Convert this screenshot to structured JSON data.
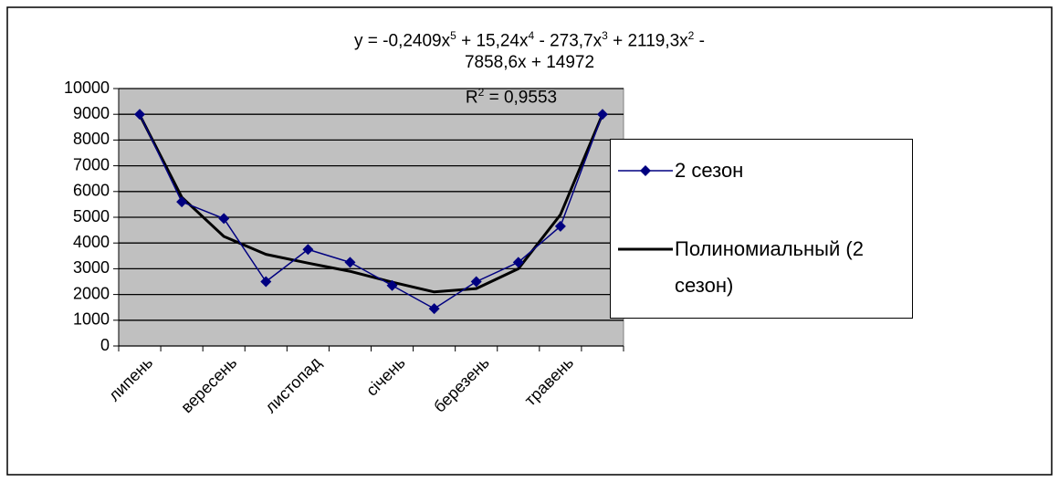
{
  "chart_data": {
    "type": "line",
    "categories": [
      "липень",
      null,
      "вересень",
      null,
      "листопад",
      null,
      "січень",
      null,
      "березень",
      null,
      "травень",
      null
    ],
    "series": [
      {
        "name": "2 сезон",
        "color": "#000080",
        "marker": "diamond",
        "values": [
          9000,
          5600,
          4950,
          2500,
          3750,
          3250,
          2350,
          1450,
          2500,
          3250,
          4650,
          9000
        ]
      },
      {
        "name": "Полиномиальный (2 сезон)",
        "color": "#000000",
        "trendline": true,
        "values": [
          8974,
          5778,
          4256,
          3560,
          3220,
          2900,
          2480,
          2100,
          2230,
          3000,
          5100,
          9000
        ]
      }
    ],
    "trendline_label": [
      [
        "y = -0,2409x",
        "5",
        " + 15,24x",
        "4",
        " - 273,7x",
        "3",
        " + 2119,3x",
        "2",
        " -"
      ],
      [
        "7858,6x + 14972"
      ],
      [
        "R",
        "2",
        " = 0,9553"
      ]
    ],
    "ylim": [
      0,
      10000
    ],
    "yticks": [
      0,
      1000,
      2000,
      3000,
      4000,
      5000,
      6000,
      7000,
      8000,
      9000,
      10000
    ],
    "grid": true,
    "plot_background": "#c0c0c0",
    "legend_position": "right"
  }
}
